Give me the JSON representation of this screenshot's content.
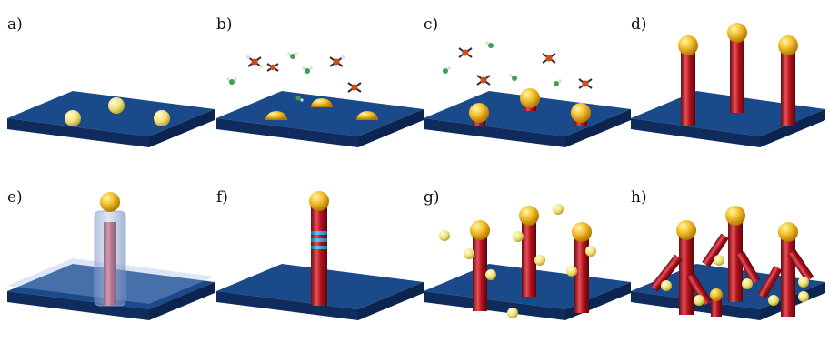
{
  "panels": [
    {
      "id": "a",
      "label": "a)"
    },
    {
      "id": "b",
      "label": "b)"
    },
    {
      "id": "c",
      "label": "c)"
    },
    {
      "id": "d",
      "label": "d)"
    },
    {
      "id": "e",
      "label": "e)"
    },
    {
      "id": "f",
      "label": "f)"
    },
    {
      "id": "g",
      "label": "g)"
    },
    {
      "id": "h",
      "label": "h)"
    }
  ],
  "colors": {
    "substrate_top": "#1a4a8a",
    "substrate_side": "#0f2c5c",
    "nanowire": "#b3121c",
    "nanowire_highlight": "#e8505a",
    "gold": "#f2c12e",
    "gold_dark": "#c98a00",
    "particle": "#f0e36a",
    "shell": "#8aa6e0",
    "band": "#2aa0d8",
    "molecule_center": "#d04a1a",
    "molecule_arm": "#333333",
    "molecule_green": "#3aa055"
  },
  "icons": [
    "substrate-plate",
    "gold-droplet",
    "nanowire",
    "precursor-molecule",
    "core-shell",
    "axial-heterostructure",
    "gold-particle",
    "branched-nanowire"
  ]
}
